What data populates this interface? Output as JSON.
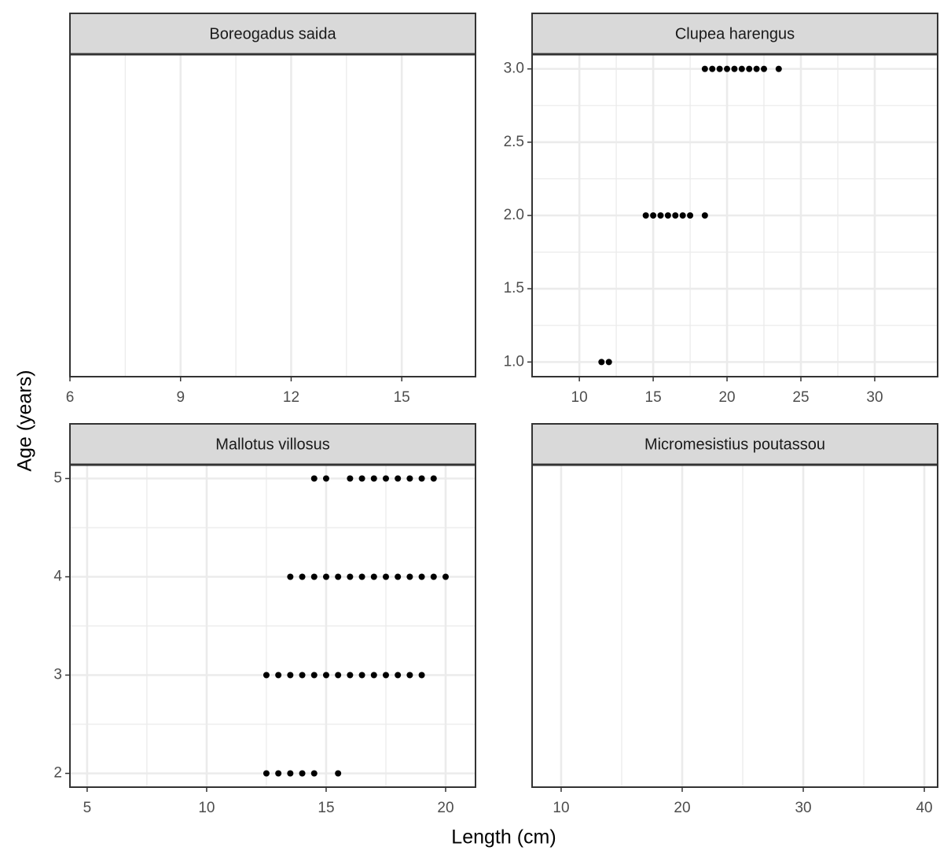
{
  "chart_data": [
    {
      "type": "scatter",
      "title": "Boreogadus saida",
      "x": [],
      "values": [],
      "color": "#000000",
      "xlim": [
        6,
        17
      ],
      "xticks": [
        6,
        9,
        12,
        15
      ],
      "grid": true
    },
    {
      "type": "scatter",
      "title": "Clupea harengus",
      "x": [
        18.5,
        19,
        19.5,
        20,
        20.5,
        21,
        21.5,
        22,
        22.5,
        23.5,
        14.5,
        15,
        15.5,
        16,
        16.5,
        17,
        17.5,
        18.5,
        11.5,
        12
      ],
      "values": [
        3,
        3,
        3,
        3,
        3,
        3,
        3,
        3,
        3,
        3,
        2,
        2,
        2,
        2,
        2,
        2,
        2,
        2,
        1,
        1
      ],
      "color": "#000000",
      "xlim": [
        6.8,
        34.26
      ],
      "xticks": [
        10,
        15,
        20,
        25,
        30
      ],
      "ylim": [
        0.9,
        3.1
      ],
      "yticks": [
        {
          "value": 1,
          "label": "1.0"
        },
        1.5,
        {
          "value": 2,
          "label": "2.0"
        },
        2.5,
        {
          "value": 3,
          "label": "3.0"
        }
      ],
      "grid": true
    },
    {
      "type": "scatter",
      "title": "Mallotus villosus",
      "x": [
        14.5,
        15,
        16,
        16.5,
        17,
        17.5,
        18,
        18.5,
        19,
        19.5,
        13.5,
        14,
        14.5,
        15,
        15.5,
        16,
        16.5,
        17,
        17.5,
        18,
        18.5,
        19,
        19.5,
        20,
        12.5,
        13,
        13.5,
        14,
        14.5,
        15,
        15.5,
        16,
        16.5,
        17,
        17.5,
        18,
        18.5,
        19,
        12.5,
        13,
        13.5,
        14,
        14.5,
        15.5
      ],
      "values": [
        5,
        5,
        5,
        5,
        5,
        5,
        5,
        5,
        5,
        5,
        4,
        4,
        4,
        4,
        4,
        4,
        4,
        4,
        4,
        4,
        4,
        4,
        4,
        4,
        3,
        3,
        3,
        3,
        3,
        3,
        3,
        3,
        3,
        3,
        3,
        3,
        3,
        3,
        2,
        2,
        2,
        2,
        2,
        2
      ],
      "color": "#000000",
      "xlim": [
        4.28,
        21.25
      ],
      "xticks": [
        5,
        10,
        15,
        20
      ],
      "ylim": [
        1.86,
        5.14
      ],
      "yticks": [
        2,
        3,
        4,
        5
      ],
      "grid": true
    },
    {
      "type": "scatter",
      "title": "Micromesistius poutassou",
      "x": [],
      "values": [],
      "color": "#000000",
      "xlim": [
        7.6,
        41.1
      ],
      "xticks": [
        10,
        20,
        30,
        40
      ],
      "grid": true
    }
  ],
  "xlabel": "Length (cm)",
  "ylabel": "Age (years)"
}
